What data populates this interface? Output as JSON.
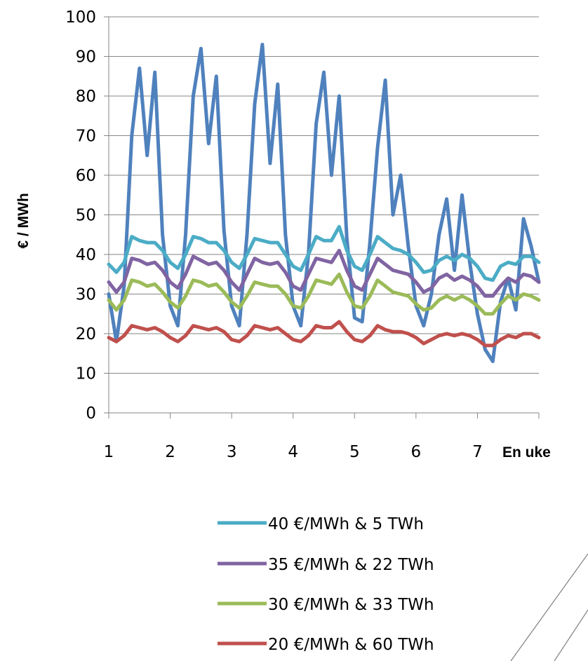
{
  "chart_data": {
    "type": "line",
    "title": "",
    "xlabel": "En uke",
    "ylabel": "€ / MWh",
    "xlim": [
      1,
      8
    ],
    "ylim": [
      0,
      100
    ],
    "x_ticks": [
      1,
      2,
      3,
      4,
      5,
      6,
      7
    ],
    "y_ticks": [
      0,
      10,
      20,
      30,
      40,
      50,
      60,
      70,
      80,
      90,
      100
    ],
    "grid": "horizontal",
    "legend": "bottom",
    "x": [
      1,
      1.125,
      1.25,
      1.375,
      1.5,
      1.625,
      1.75,
      1.875,
      2,
      2.125,
      2.25,
      2.375,
      2.5,
      2.625,
      2.75,
      2.875,
      3,
      3.125,
      3.25,
      3.375,
      3.5,
      3.625,
      3.75,
      3.875,
      4,
      4.125,
      4.25,
      4.375,
      4.5,
      4.625,
      4.75,
      4.875,
      5,
      5.125,
      5.25,
      5.375,
      5.5,
      5.625,
      5.75,
      5.875,
      6,
      6.125,
      6.25,
      6.375,
      6.5,
      6.625,
      6.75,
      6.875,
      7,
      7.125,
      7.25,
      7.375,
      7.5,
      7.625,
      7.75,
      7.875,
      8
    ],
    "series": [
      {
        "name": "",
        "color": "#4f81bd",
        "values": [
          30,
          18,
          32,
          70,
          87,
          65,
          86,
          45,
          27,
          22,
          45,
          80,
          92,
          68,
          85,
          46,
          27,
          22,
          45,
          78,
          93,
          63,
          83,
          45,
          27,
          22,
          40,
          73,
          86,
          60,
          80,
          44,
          24,
          23,
          43,
          67,
          84,
          50,
          60,
          42,
          27,
          22,
          30,
          45,
          54,
          36,
          55,
          38,
          25,
          16,
          13,
          28,
          34,
          26,
          49,
          42,
          33
        ]
      },
      {
        "name": "40 €/MWh & 5 TWh",
        "color": "#4bacc6",
        "values": [
          37.5,
          35.5,
          38,
          44.5,
          43.5,
          43,
          43,
          41,
          38,
          36.5,
          40,
          44.5,
          44,
          43,
          43,
          41,
          38,
          36.5,
          40,
          44,
          43.5,
          43,
          43,
          40,
          37,
          36,
          40,
          44.5,
          43.5,
          43.5,
          47,
          41,
          37,
          36,
          40,
          44.5,
          43,
          41.5,
          41,
          40,
          38,
          35.5,
          36,
          38.5,
          39.5,
          38.5,
          40,
          39,
          37,
          34,
          33.5,
          37,
          38,
          37.5,
          39.5,
          39.5,
          38
        ]
      },
      {
        "name": "35 €/MWh & 22 TWh",
        "color": "#8064a2",
        "values": [
          33,
          30.5,
          33,
          39,
          38.5,
          37.5,
          38,
          36,
          33,
          31.5,
          35,
          39.5,
          38.5,
          37.5,
          38,
          36,
          33,
          31,
          35,
          39,
          38,
          37.5,
          38,
          35.5,
          32,
          31,
          35,
          39,
          38.5,
          38,
          41,
          36,
          32,
          31,
          35,
          39,
          37.5,
          36,
          35.5,
          35,
          33,
          30.5,
          31.5,
          34,
          35,
          33.5,
          34.5,
          33.5,
          32,
          29.5,
          29.5,
          32,
          34,
          33,
          35,
          34.5,
          33
        ]
      },
      {
        "name": "30 €/MWh & 33 TWh",
        "color": "#9bbb59",
        "values": [
          28.5,
          26,
          28.5,
          33.5,
          33,
          32,
          32.5,
          30.5,
          28,
          26.5,
          29.5,
          33.5,
          33,
          32,
          32.5,
          30.5,
          28,
          26.5,
          29.5,
          33,
          32.5,
          32,
          32,
          30,
          27,
          26.5,
          29.5,
          33.5,
          33,
          32.5,
          35,
          30.5,
          27,
          26.5,
          29.5,
          33.5,
          32,
          30.5,
          30,
          29.5,
          27.5,
          26,
          26.5,
          28.5,
          29.5,
          28.5,
          29.5,
          28.5,
          27,
          25,
          25,
          27.5,
          29.5,
          28.5,
          30,
          29.5,
          28.5
        ]
      },
      {
        "name": "20 €/MWh & 60 TWh",
        "color": "#c0504d",
        "values": [
          19,
          18,
          19.5,
          22,
          21.5,
          21,
          21.5,
          20.5,
          19,
          18,
          19.5,
          22,
          21.5,
          21,
          21.5,
          20.5,
          18.5,
          18,
          19.5,
          22,
          21.5,
          21,
          21.5,
          20,
          18.5,
          18,
          19.5,
          22,
          21.5,
          21.5,
          23,
          20.5,
          18.5,
          18,
          19.5,
          22,
          21,
          20.5,
          20.5,
          20,
          19,
          17.5,
          18.5,
          19.5,
          20,
          19.5,
          20,
          19.5,
          18.5,
          17,
          17,
          18.5,
          19.5,
          19,
          20,
          20,
          19
        ]
      }
    ]
  }
}
